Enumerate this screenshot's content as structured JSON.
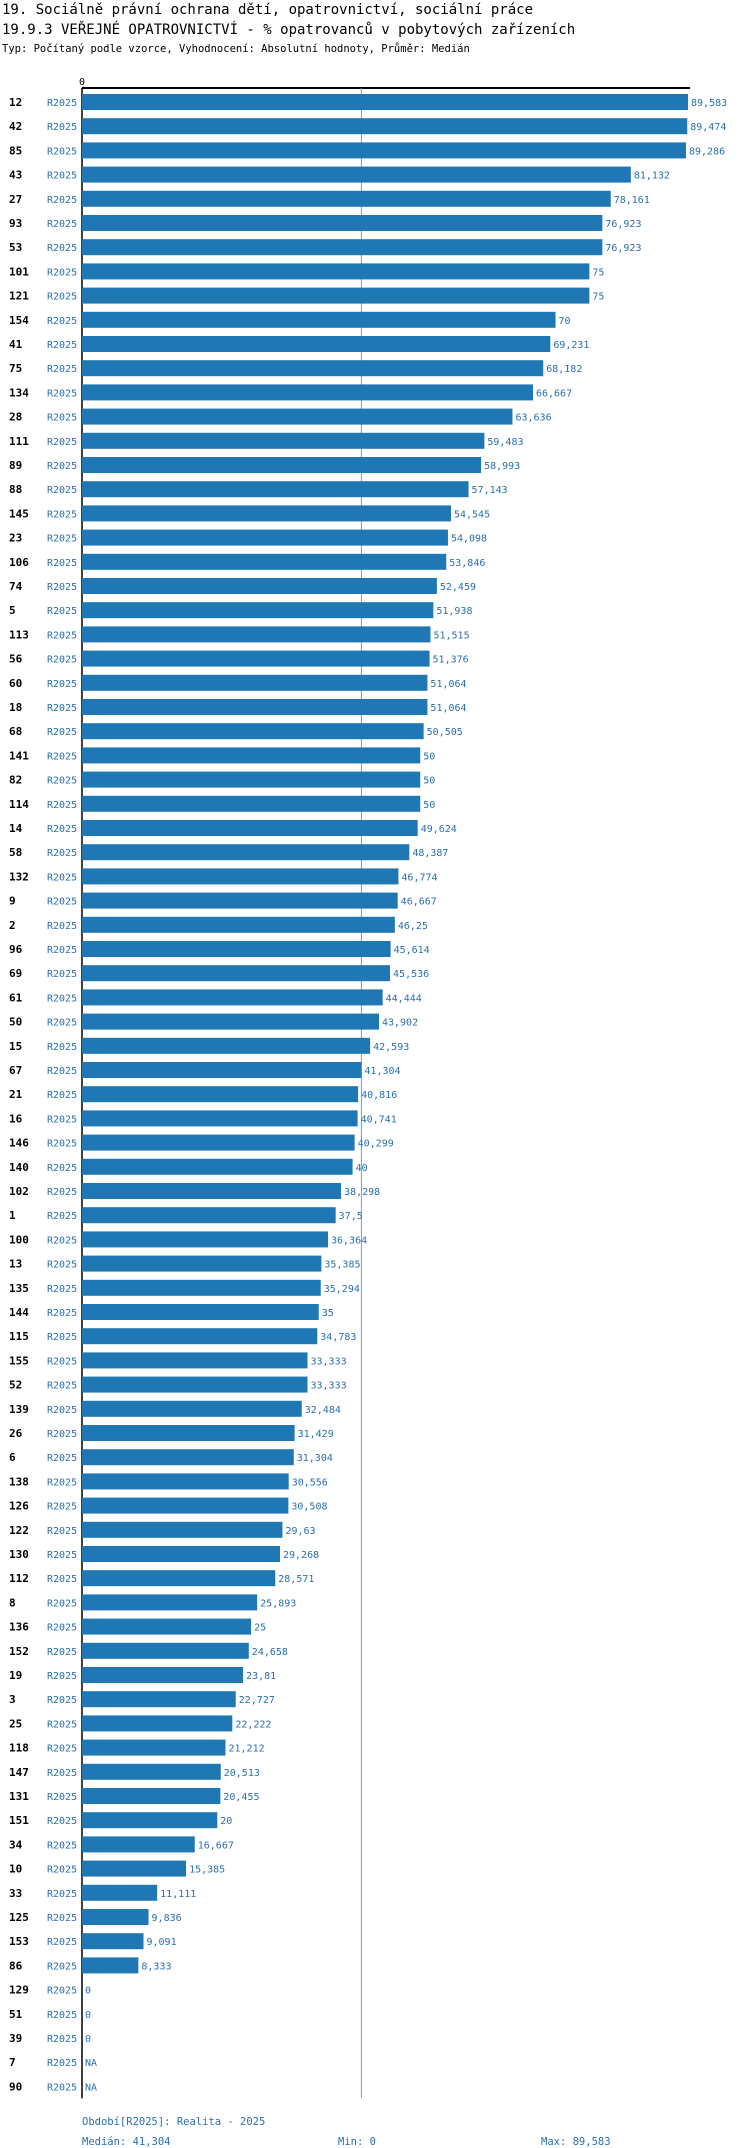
{
  "title_line1": "19. Sociálně právní ochrana dětí, opatrovnictví, sociální práce",
  "title_line2": "19.9.3 VEŘEJNÉ OPATROVNICTVÍ - % opatrovanců v pobytových zařízeních",
  "subtitle": "Typ: Počítaný podle vzorce, Vyhodnocení: Absolutní hodnoty, Průměr: Medián",
  "colors": {
    "bar": "#1f77b4",
    "label": "#2a6fb0",
    "median_line": "#6aa0cf"
  },
  "chart_data": {
    "type": "bar",
    "orientation": "horizontal",
    "axis_zero_label": "0",
    "xlim": [
      0,
      89.583
    ],
    "median": 41.304,
    "rows": [
      {
        "id": "12",
        "period": "R2025",
        "value": 89.583,
        "label": "89,583"
      },
      {
        "id": "42",
        "period": "R2025",
        "value": 89.474,
        "label": "89,474"
      },
      {
        "id": "85",
        "period": "R2025",
        "value": 89.286,
        "label": "89,286"
      },
      {
        "id": "43",
        "period": "R2025",
        "value": 81.132,
        "label": "81,132"
      },
      {
        "id": "27",
        "period": "R2025",
        "value": 78.161,
        "label": "78,161"
      },
      {
        "id": "93",
        "period": "R2025",
        "value": 76.923,
        "label": "76,923"
      },
      {
        "id": "53",
        "period": "R2025",
        "value": 76.923,
        "label": "76,923"
      },
      {
        "id": "101",
        "period": "R2025",
        "value": 75,
        "label": "75"
      },
      {
        "id": "121",
        "period": "R2025",
        "value": 75,
        "label": "75"
      },
      {
        "id": "154",
        "period": "R2025",
        "value": 70,
        "label": "70"
      },
      {
        "id": "41",
        "period": "R2025",
        "value": 69.231,
        "label": "69,231"
      },
      {
        "id": "75",
        "period": "R2025",
        "value": 68.182,
        "label": "68,182"
      },
      {
        "id": "134",
        "period": "R2025",
        "value": 66.667,
        "label": "66,667"
      },
      {
        "id": "28",
        "period": "R2025",
        "value": 63.636,
        "label": "63,636"
      },
      {
        "id": "111",
        "period": "R2025",
        "value": 59.483,
        "label": "59,483"
      },
      {
        "id": "89",
        "period": "R2025",
        "value": 58.993,
        "label": "58,993"
      },
      {
        "id": "88",
        "period": "R2025",
        "value": 57.143,
        "label": "57,143"
      },
      {
        "id": "145",
        "period": "R2025",
        "value": 54.545,
        "label": "54,545"
      },
      {
        "id": "23",
        "period": "R2025",
        "value": 54.098,
        "label": "54,098"
      },
      {
        "id": "106",
        "period": "R2025",
        "value": 53.846,
        "label": "53,846"
      },
      {
        "id": "74",
        "period": "R2025",
        "value": 52.459,
        "label": "52,459"
      },
      {
        "id": "5",
        "period": "R2025",
        "value": 51.938,
        "label": "51,938"
      },
      {
        "id": "113",
        "period": "R2025",
        "value": 51.515,
        "label": "51,515"
      },
      {
        "id": "56",
        "period": "R2025",
        "value": 51.376,
        "label": "51,376"
      },
      {
        "id": "60",
        "period": "R2025",
        "value": 51.064,
        "label": "51,064"
      },
      {
        "id": "18",
        "period": "R2025",
        "value": 51.064,
        "label": "51,064"
      },
      {
        "id": "68",
        "period": "R2025",
        "value": 50.505,
        "label": "50,505"
      },
      {
        "id": "141",
        "period": "R2025",
        "value": 50,
        "label": "50"
      },
      {
        "id": "82",
        "period": "R2025",
        "value": 50,
        "label": "50"
      },
      {
        "id": "114",
        "period": "R2025",
        "value": 50,
        "label": "50"
      },
      {
        "id": "14",
        "period": "R2025",
        "value": 49.624,
        "label": "49,624"
      },
      {
        "id": "58",
        "period": "R2025",
        "value": 48.387,
        "label": "48,387"
      },
      {
        "id": "132",
        "period": "R2025",
        "value": 46.774,
        "label": "46,774"
      },
      {
        "id": "9",
        "period": "R2025",
        "value": 46.667,
        "label": "46,667"
      },
      {
        "id": "2",
        "period": "R2025",
        "value": 46.25,
        "label": "46,25"
      },
      {
        "id": "96",
        "period": "R2025",
        "value": 45.614,
        "label": "45,614"
      },
      {
        "id": "69",
        "period": "R2025",
        "value": 45.536,
        "label": "45,536"
      },
      {
        "id": "61",
        "period": "R2025",
        "value": 44.444,
        "label": "44,444"
      },
      {
        "id": "50",
        "period": "R2025",
        "value": 43.902,
        "label": "43,902"
      },
      {
        "id": "15",
        "period": "R2025",
        "value": 42.593,
        "label": "42,593"
      },
      {
        "id": "67",
        "period": "R2025",
        "value": 41.304,
        "label": "41,304"
      },
      {
        "id": "21",
        "period": "R2025",
        "value": 40.816,
        "label": "40,816"
      },
      {
        "id": "16",
        "period": "R2025",
        "value": 40.741,
        "label": "40,741"
      },
      {
        "id": "146",
        "period": "R2025",
        "value": 40.299,
        "label": "40,299"
      },
      {
        "id": "140",
        "period": "R2025",
        "value": 40,
        "label": "40"
      },
      {
        "id": "102",
        "period": "R2025",
        "value": 38.298,
        "label": "38,298"
      },
      {
        "id": "1",
        "period": "R2025",
        "value": 37.5,
        "label": "37,5"
      },
      {
        "id": "100",
        "period": "R2025",
        "value": 36.364,
        "label": "36,364"
      },
      {
        "id": "13",
        "period": "R2025",
        "value": 35.385,
        "label": "35,385"
      },
      {
        "id": "135",
        "period": "R2025",
        "value": 35.294,
        "label": "35,294"
      },
      {
        "id": "144",
        "period": "R2025",
        "value": 35,
        "label": "35"
      },
      {
        "id": "115",
        "period": "R2025",
        "value": 34.783,
        "label": "34,783"
      },
      {
        "id": "155",
        "period": "R2025",
        "value": 33.333,
        "label": "33,333"
      },
      {
        "id": "52",
        "period": "R2025",
        "value": 33.333,
        "label": "33,333"
      },
      {
        "id": "139",
        "period": "R2025",
        "value": 32.484,
        "label": "32,484"
      },
      {
        "id": "26",
        "period": "R2025",
        "value": 31.429,
        "label": "31,429"
      },
      {
        "id": "6",
        "period": "R2025",
        "value": 31.304,
        "label": "31,304"
      },
      {
        "id": "138",
        "period": "R2025",
        "value": 30.556,
        "label": "30,556"
      },
      {
        "id": "126",
        "period": "R2025",
        "value": 30.508,
        "label": "30,508"
      },
      {
        "id": "122",
        "period": "R2025",
        "value": 29.63,
        "label": "29,63"
      },
      {
        "id": "130",
        "period": "R2025",
        "value": 29.268,
        "label": "29,268"
      },
      {
        "id": "112",
        "period": "R2025",
        "value": 28.571,
        "label": "28,571"
      },
      {
        "id": "8",
        "period": "R2025",
        "value": 25.893,
        "label": "25,893"
      },
      {
        "id": "136",
        "period": "R2025",
        "value": 25,
        "label": "25"
      },
      {
        "id": "152",
        "period": "R2025",
        "value": 24.658,
        "label": "24,658"
      },
      {
        "id": "19",
        "period": "R2025",
        "value": 23.81,
        "label": "23,81"
      },
      {
        "id": "3",
        "period": "R2025",
        "value": 22.727,
        "label": "22,727"
      },
      {
        "id": "25",
        "period": "R2025",
        "value": 22.222,
        "label": "22,222"
      },
      {
        "id": "118",
        "period": "R2025",
        "value": 21.212,
        "label": "21,212"
      },
      {
        "id": "147",
        "period": "R2025",
        "value": 20.513,
        "label": "20,513"
      },
      {
        "id": "131",
        "period": "R2025",
        "value": 20.455,
        "label": "20,455"
      },
      {
        "id": "151",
        "period": "R2025",
        "value": 20,
        "label": "20"
      },
      {
        "id": "34",
        "period": "R2025",
        "value": 16.667,
        "label": "16,667"
      },
      {
        "id": "10",
        "period": "R2025",
        "value": 15.385,
        "label": "15,385"
      },
      {
        "id": "33",
        "period": "R2025",
        "value": 11.111,
        "label": "11,111"
      },
      {
        "id": "125",
        "period": "R2025",
        "value": 9.836,
        "label": "9,836"
      },
      {
        "id": "153",
        "period": "R2025",
        "value": 9.091,
        "label": "9,091"
      },
      {
        "id": "86",
        "period": "R2025",
        "value": 8.333,
        "label": "8,333"
      },
      {
        "id": "129",
        "period": "R2025",
        "value": 0,
        "label": "0"
      },
      {
        "id": "51",
        "period": "R2025",
        "value": 0,
        "label": "0"
      },
      {
        "id": "39",
        "period": "R2025",
        "value": 0,
        "label": "0"
      },
      {
        "id": "7",
        "period": "R2025",
        "value": null,
        "label": "NA"
      },
      {
        "id": "90",
        "period": "R2025",
        "value": null,
        "label": "NA"
      }
    ]
  },
  "footer": {
    "period_note": "Období[R2025]: Realita - 2025",
    "median_text": "Medián: 41,304",
    "min_text": "Min: 0",
    "max_text": "Max: 89,583"
  }
}
